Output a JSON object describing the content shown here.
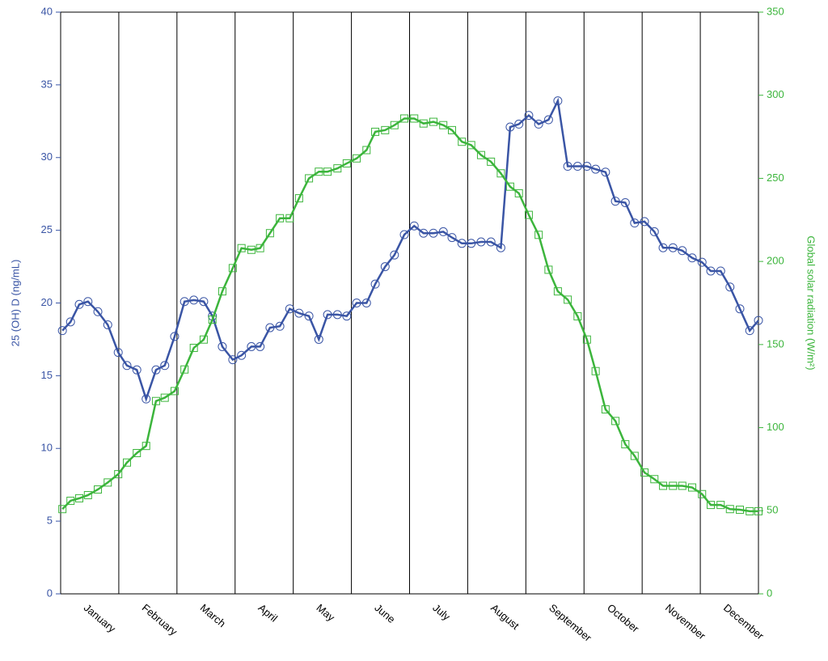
{
  "chart_data": {
    "type": "line",
    "ylabel": "25 (OH) D (ng/mL)",
    "y2label": "Global solar radiation (W/m²)",
    "categories": [
      "January",
      "February",
      "March",
      "April",
      "May",
      "June",
      "July",
      "August",
      "September",
      "October",
      "November",
      "December"
    ],
    "xlim": [
      0,
      12
    ],
    "x": [
      0.03,
      0.17,
      0.32,
      0.47,
      0.64,
      0.81,
      0.99,
      1.14,
      1.31,
      1.47,
      1.64,
      1.79,
      1.96,
      2.13,
      2.29,
      2.46,
      2.61,
      2.78,
      2.96,
      3.11,
      3.28,
      3.43,
      3.6,
      3.77,
      3.94,
      4.1,
      4.27,
      4.44,
      4.59,
      4.76,
      4.92,
      5.09,
      5.26,
      5.41,
      5.58,
      5.74,
      5.91,
      6.08,
      6.24,
      6.41,
      6.58,
      6.73,
      6.9,
      7.06,
      7.23,
      7.4,
      7.57,
      7.73,
      7.88,
      8.05,
      8.22,
      8.39,
      8.55,
      8.72,
      8.89,
      9.05,
      9.2,
      9.37,
      9.54,
      9.71,
      9.87,
      10.04,
      10.21,
      10.36,
      10.53,
      10.69,
      10.86,
      11.03,
      11.18,
      11.35,
      11.51,
      11.68,
      11.85,
      12.0
    ],
    "ylim": [
      0,
      40
    ],
    "yticks": [
      0,
      5,
      10,
      15,
      20,
      25,
      30,
      35,
      40
    ],
    "y2lim": [
      0,
      350
    ],
    "y2ticks": [
      0,
      50,
      100,
      150,
      200,
      250,
      300,
      350
    ],
    "series": [
      {
        "color": "#3a55a5",
        "marker": "circle",
        "values": [
          18.1,
          18.7,
          19.9,
          20.1,
          19.4,
          18.5,
          16.6,
          15.7,
          15.4,
          13.4,
          15.4,
          15.7,
          17.7,
          20.1,
          20.2,
          20.1,
          19.1,
          17.0,
          16.1,
          16.4,
          17.0,
          17.0,
          18.3,
          18.4,
          19.6,
          19.3,
          19.1,
          17.5,
          19.2,
          19.2,
          19.1,
          20.0,
          20.0,
          21.3,
          22.5,
          23.3,
          24.7,
          25.3,
          24.8,
          24.8,
          24.9,
          24.5,
          24.1,
          24.1,
          24.2,
          24.2,
          23.8,
          32.1,
          32.3,
          32.9,
          32.3,
          32.6,
          33.9,
          29.4,
          29.4,
          29.4,
          29.2,
          29.0,
          27.0,
          26.9,
          25.5,
          25.6,
          24.9,
          23.8,
          23.8,
          23.6,
          23.1,
          22.8,
          22.2,
          22.2,
          21.1,
          19.6,
          18.1,
          18.8
        ]
      },
      {
        "color": "#3cb53c",
        "marker": "square",
        "axis": "y2",
        "values": [
          51,
          56,
          57.5,
          59.4,
          62.8,
          67,
          72,
          79,
          84.7,
          89,
          116,
          118,
          122,
          135,
          148,
          153,
          165,
          182,
          196,
          208,
          207,
          208,
          217,
          226,
          226,
          238,
          250,
          254,
          254,
          256,
          259,
          262,
          267,
          278,
          279,
          282,
          286,
          286,
          283,
          284,
          282,
          279,
          272,
          270,
          264,
          260,
          253,
          245,
          241,
          228,
          216,
          195,
          182,
          177,
          167,
          153,
          134,
          111,
          104,
          90,
          83,
          73,
          69,
          65,
          65,
          65,
          64,
          60,
          53.5,
          53.5,
          51,
          50.6,
          49.7,
          49.7
        ]
      }
    ]
  }
}
